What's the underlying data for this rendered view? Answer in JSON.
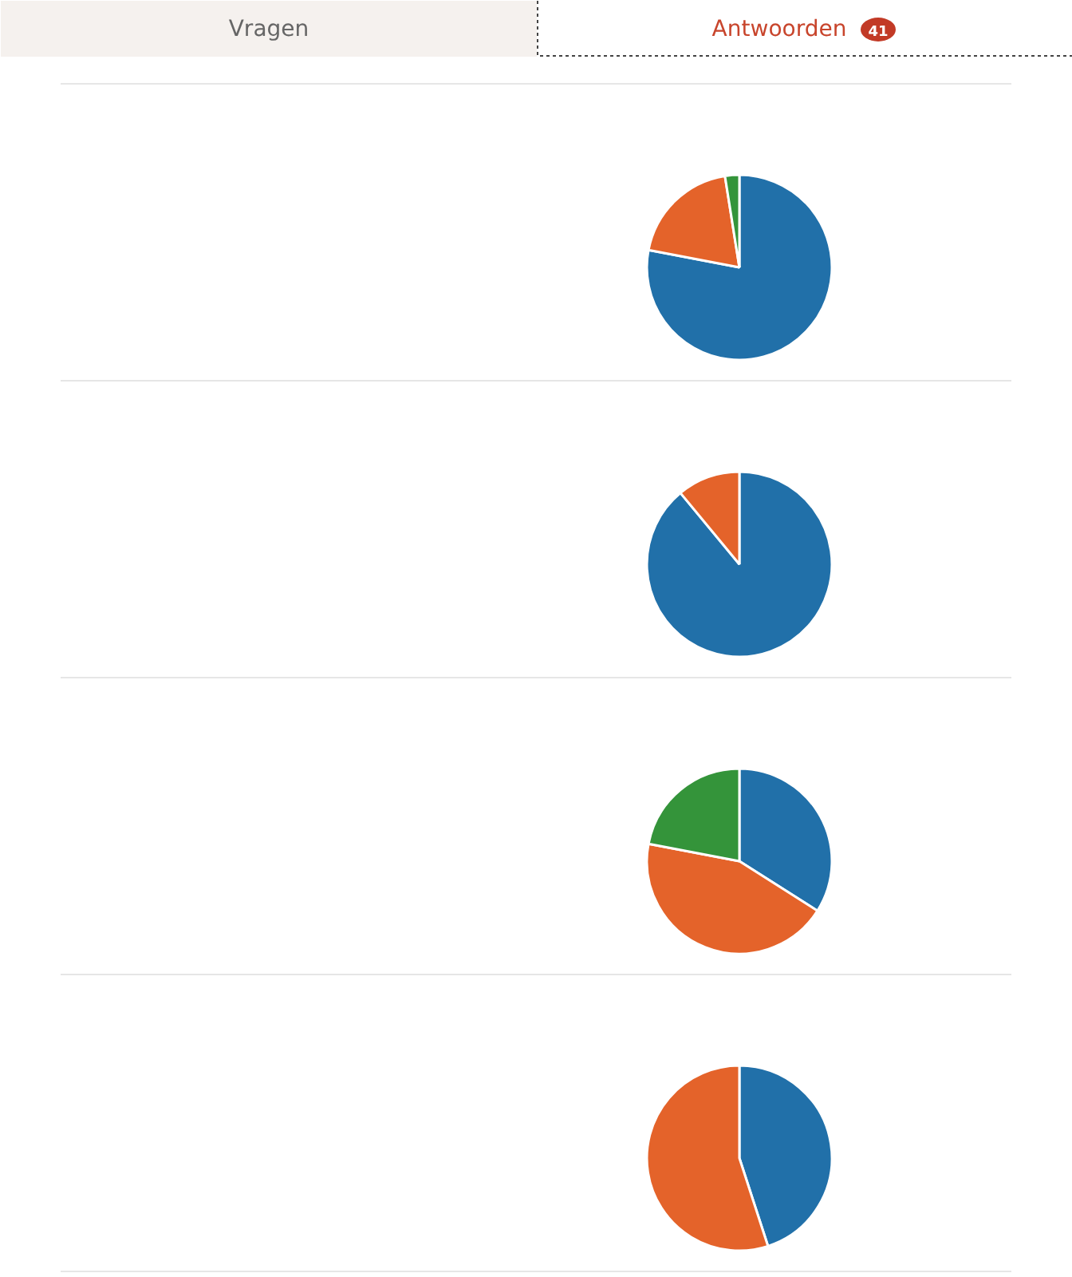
{
  "chart_data": [
    {
      "type": "other",
      "annotations": [
        "Vragen",
        "Antwoorden",
        "41"
      ]
    },
    {
      "type": "pie",
      "categories": [
        null,
        null,
        null
      ],
      "values": [
        78,
        19.5,
        2.5
      ],
      "colors": [
        "#2170a9",
        "#e4632a",
        "#34943a"
      ]
    },
    {
      "type": "pie",
      "categories": [
        null,
        null
      ],
      "values": [
        89,
        11
      ],
      "colors": [
        "#2170a9",
        "#e4632a"
      ]
    },
    {
      "type": "pie",
      "categories": [
        null,
        null,
        null
      ],
      "values": [
        34,
        44,
        22
      ],
      "colors": [
        "#2170a9",
        "#e4632a",
        "#34943a"
      ]
    },
    {
      "type": "pie",
      "categories": [
        null,
        null
      ],
      "values": [
        45,
        55
      ],
      "colors": [
        "#2170a9",
        "#e4632a"
      ]
    }
  ]
}
